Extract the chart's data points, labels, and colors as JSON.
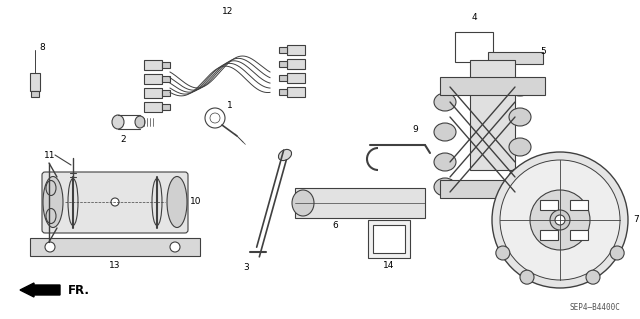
{
  "bg_color": "#ffffff",
  "diagram_color": "#404040",
  "label_fontsize": 6.5,
  "watermark": "SEP4–B4400C",
  "fr_label": "FR.",
  "figsize": [
    6.4,
    3.19
  ],
  "dpi": 100
}
